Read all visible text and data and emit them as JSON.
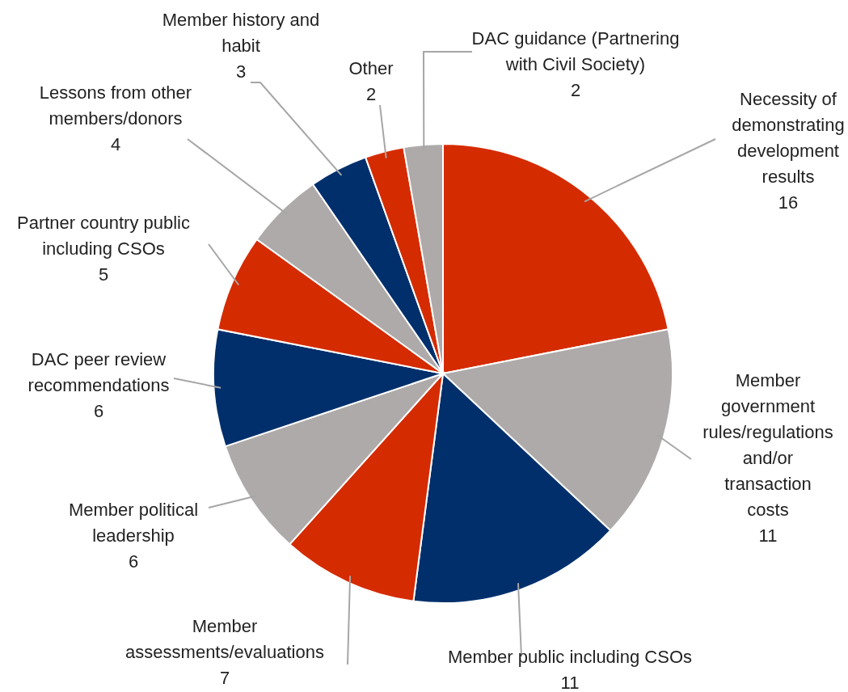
{
  "chart_data": {
    "type": "pie",
    "categories": [
      "Necessity of demonstrating development results",
      "Member government rules/regulations and/or transaction costs",
      "Member public including CSOs",
      "Member assessments/evaluations",
      "Member political leadership",
      "DAC peer review recommendations",
      "Partner country public including CSOs",
      "Lessons from other members/donors",
      "Member history and habit",
      "Other",
      "DAC guidance (Partnering with Civil Society)"
    ],
    "values": [
      16,
      11,
      11,
      7,
      6,
      6,
      5,
      4,
      3,
      2,
      2
    ],
    "colors": [
      "#d52b00",
      "#aeaaaa",
      "#002f6c",
      "#d52b00",
      "#aeaaaa",
      "#002f6c",
      "#d52b00",
      "#aeaaaa",
      "#002f6c",
      "#d52b00",
      "#aeaaaa"
    ],
    "data_labels": true
  }
}
